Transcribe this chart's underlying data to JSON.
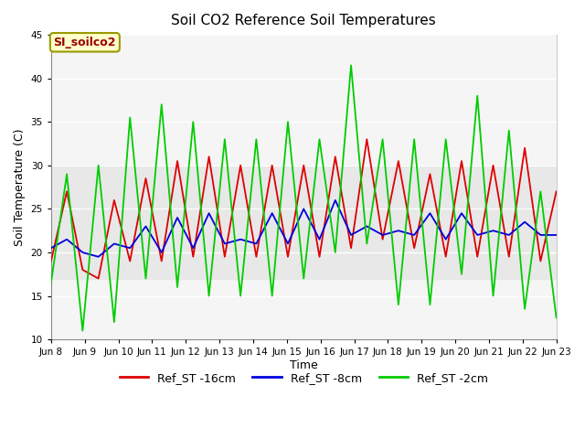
{
  "title": "Soil CO2 Reference Soil Temperatures",
  "xlabel": "Time",
  "ylabel": "Soil Temperature (C)",
  "ylim": [
    10,
    45
  ],
  "yticks": [
    10,
    15,
    20,
    25,
    30,
    35,
    40,
    45
  ],
  "annotation_text": "SI_soilco2",
  "annotation_bg": "#ffffcc",
  "annotation_fg": "#990000",
  "annotation_border": "#999900",
  "bg_band_lower": 17,
  "bg_band_upper": 30,
  "bg_band_color": "#e8e8e8",
  "plot_bg": "#f5f5f5",
  "line_red": "#dd0000",
  "line_blue": "#0000dd",
  "line_green": "#00cc00",
  "x_labels": [
    "Jun 8",
    "Jun 9",
    "Jun 10",
    "Jun 11",
    "Jun 12",
    "Jun 13",
    "Jun 14",
    "Jun 15",
    "Jun 16",
    "Jun 17",
    "Jun 18",
    "Jun 19",
    "Jun 20",
    "Jun 21",
    "Jun 22",
    "Jun 23"
  ],
  "red_data": [
    19.0,
    27.0,
    18.0,
    17.0,
    26.0,
    19.0,
    28.5,
    19.0,
    30.5,
    19.5,
    31.0,
    19.5,
    30.0,
    19.5,
    30.0,
    19.5,
    30.0,
    19.5,
    31.0,
    20.5,
    33.0,
    21.5,
    30.5,
    20.5,
    29.0,
    19.5,
    30.5,
    19.5,
    30.0,
    19.5,
    32.0,
    19.0,
    27.0
  ],
  "blue_data": [
    20.5,
    21.5,
    20.0,
    19.5,
    21.0,
    20.5,
    23.0,
    20.0,
    24.0,
    20.5,
    24.5,
    21.0,
    21.5,
    21.0,
    24.5,
    21.0,
    25.0,
    21.5,
    26.0,
    22.0,
    23.0,
    22.0,
    22.5,
    22.0,
    24.5,
    21.5,
    24.5,
    22.0,
    22.5,
    22.0,
    23.5,
    22.0,
    22.0
  ],
  "green_data": [
    16.5,
    29.0,
    11.0,
    30.0,
    12.0,
    35.5,
    17.0,
    37.0,
    16.0,
    35.0,
    15.0,
    33.0,
    15.0,
    33.0,
    15.0,
    35.0,
    17.0,
    33.0,
    20.0,
    41.5,
    21.0,
    33.0,
    14.0,
    33.0,
    14.0,
    33.0,
    17.5,
    38.0,
    15.0,
    34.0,
    13.5,
    27.0,
    12.5
  ],
  "legend": [
    {
      "label": "Ref_ST -16cm",
      "color": "#dd0000"
    },
    {
      "label": "Ref_ST -8cm",
      "color": "#0000dd"
    },
    {
      "label": "Ref_ST -2cm",
      "color": "#00cc00"
    }
  ]
}
